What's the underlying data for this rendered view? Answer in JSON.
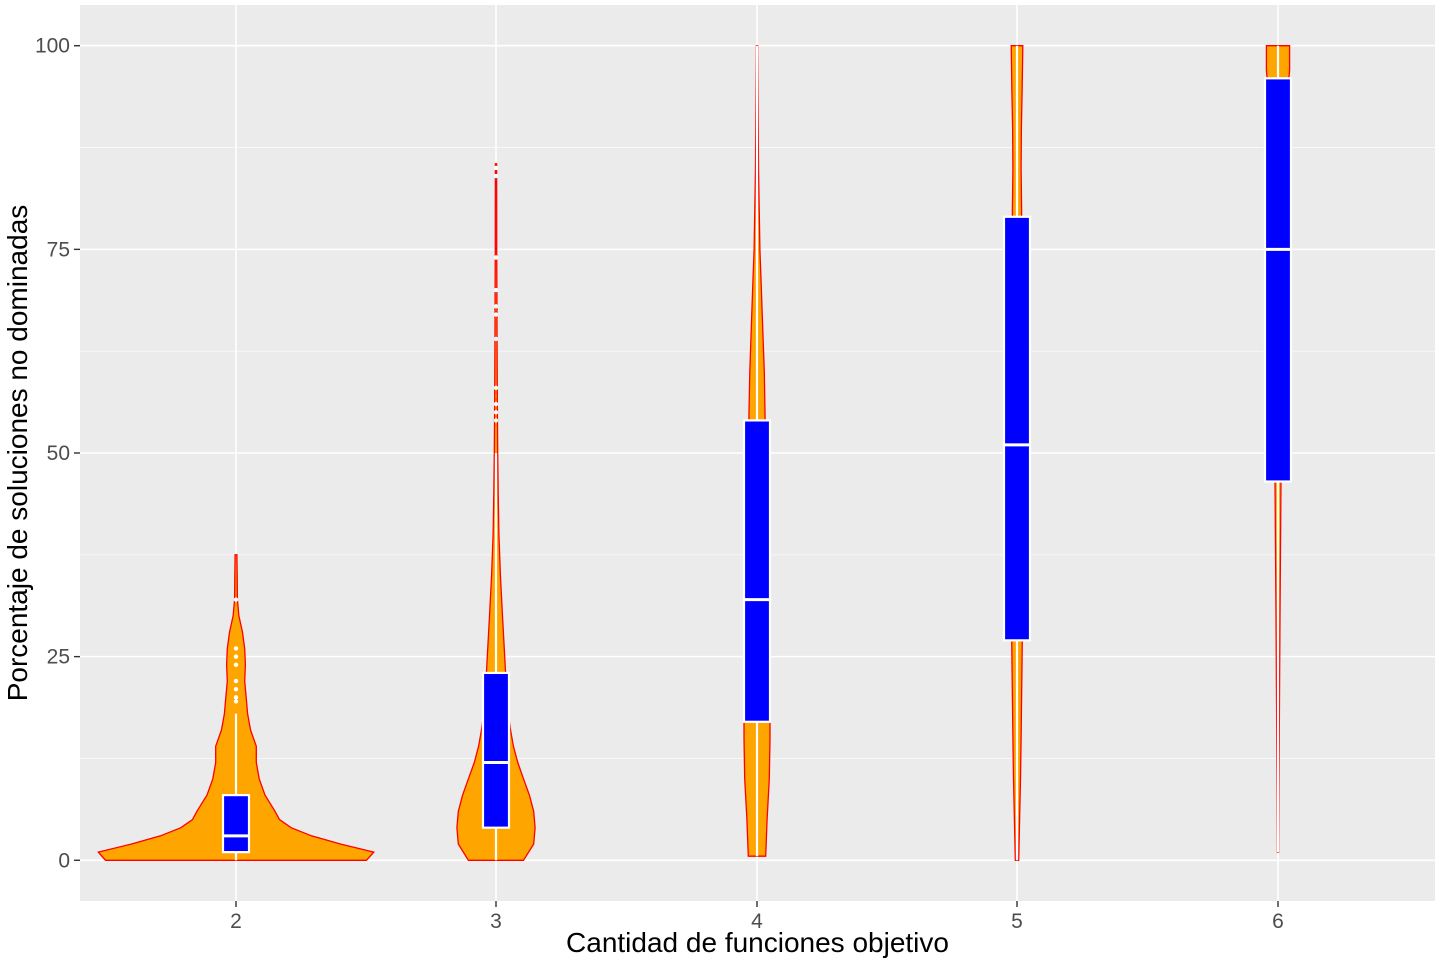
{
  "chart_data": {
    "type": "violin",
    "xlabel": "Cantidad de funciones objetivo",
    "ylabel": "Porcentaje de soluciones no dominadas",
    "categories": [
      "2",
      "3",
      "4",
      "5",
      "6"
    ],
    "ylim": [
      -5,
      105
    ],
    "y_ticks": [
      0,
      25,
      50,
      75,
      100
    ],
    "y_tick_labels": [
      "0",
      "25",
      "50",
      "75",
      "100"
    ],
    "grid": true,
    "colors": {
      "panel_bg": "#ebebeb",
      "grid_major": "#ffffff",
      "violin_fill": "#ffa500",
      "violin_outline": "#ff0000",
      "box_fill": "#0000ff",
      "box_line": "#ffffff"
    },
    "violins": [
      {
        "category": "2",
        "box": {
          "q1": 1,
          "median": 3,
          "q3": 8,
          "whisker_low": 0,
          "whisker_high": 18
        },
        "outliers": [
          19.5,
          20,
          21,
          22,
          24,
          25,
          26,
          32
        ],
        "profile": [
          [
            0,
            0.9
          ],
          [
            1,
            0.95
          ],
          [
            2,
            0.72
          ],
          [
            3,
            0.52
          ],
          [
            4,
            0.38
          ],
          [
            5,
            0.3
          ],
          [
            6,
            0.27
          ],
          [
            8,
            0.2
          ],
          [
            10,
            0.16
          ],
          [
            12,
            0.14
          ],
          [
            14,
            0.14
          ],
          [
            16,
            0.1
          ],
          [
            18,
            0.08
          ],
          [
            20,
            0.07
          ],
          [
            22,
            0.06
          ],
          [
            24,
            0.065
          ],
          [
            26,
            0.06
          ],
          [
            28,
            0.045
          ],
          [
            30,
            0.02
          ],
          [
            32,
            0.01
          ],
          [
            35,
            0.008
          ],
          [
            37.5,
            0.006
          ]
        ]
      },
      {
        "category": "3",
        "box": {
          "q1": 4,
          "median": 12,
          "q3": 23,
          "whisker_low": 0,
          "whisker_high": 50
        },
        "outliers": [
          54,
          55,
          56,
          58,
          64,
          67,
          68,
          70,
          74,
          84,
          85
        ],
        "profile": [
          [
            0,
            0.19
          ],
          [
            2,
            0.26
          ],
          [
            4,
            0.27
          ],
          [
            6,
            0.26
          ],
          [
            8,
            0.23
          ],
          [
            10,
            0.19
          ],
          [
            12,
            0.15
          ],
          [
            14,
            0.12
          ],
          [
            16,
            0.1
          ],
          [
            18,
            0.085
          ],
          [
            20,
            0.075
          ],
          [
            25,
            0.06
          ],
          [
            30,
            0.045
          ],
          [
            35,
            0.03
          ],
          [
            40,
            0.02
          ],
          [
            45,
            0.015
          ],
          [
            50,
            0.012
          ],
          [
            55,
            0.01
          ],
          [
            60,
            0.008
          ],
          [
            65,
            0.007
          ],
          [
            70,
            0.006
          ],
          [
            75,
            0.005
          ],
          [
            80,
            0.005
          ],
          [
            85.5,
            0.004
          ]
        ]
      },
      {
        "category": "4",
        "box": {
          "q1": 17,
          "median": 32,
          "q3": 54,
          "whisker_low": 0.5,
          "whisker_high": 100
        },
        "outliers": [],
        "profile": [
          [
            0.5,
            0.06
          ],
          [
            5,
            0.07
          ],
          [
            10,
            0.085
          ],
          [
            15,
            0.09
          ],
          [
            20,
            0.09
          ],
          [
            25,
            0.085
          ],
          [
            30,
            0.075
          ],
          [
            35,
            0.07
          ],
          [
            40,
            0.065
          ],
          [
            45,
            0.06
          ],
          [
            50,
            0.058
          ],
          [
            55,
            0.055
          ],
          [
            60,
            0.05
          ],
          [
            65,
            0.04
          ],
          [
            70,
            0.03
          ],
          [
            75,
            0.02
          ],
          [
            80,
            0.015
          ],
          [
            85,
            0.01
          ],
          [
            90,
            0.008
          ],
          [
            95,
            0.006
          ],
          [
            100,
            0.004
          ]
        ]
      },
      {
        "category": "5",
        "box": {
          "q1": 27,
          "median": 51,
          "q3": 79,
          "whisker_low": 0,
          "whisker_high": 100
        },
        "outliers": [],
        "profile": [
          [
            0,
            0.012
          ],
          [
            5,
            0.018
          ],
          [
            10,
            0.024
          ],
          [
            15,
            0.028
          ],
          [
            20,
            0.032
          ],
          [
            25,
            0.035
          ],
          [
            30,
            0.038
          ],
          [
            35,
            0.04
          ],
          [
            40,
            0.04
          ],
          [
            45,
            0.04
          ],
          [
            50,
            0.04
          ],
          [
            55,
            0.04
          ],
          [
            60,
            0.038
          ],
          [
            65,
            0.036
          ],
          [
            70,
            0.034
          ],
          [
            75,
            0.033
          ],
          [
            80,
            0.032
          ],
          [
            85,
            0.028
          ],
          [
            90,
            0.03
          ],
          [
            95,
            0.036
          ],
          [
            100,
            0.04
          ]
        ]
      },
      {
        "category": "6",
        "box": {
          "q1": 46.5,
          "median": 75,
          "q3": 96,
          "whisker_low": 1,
          "whisker_high": 100
        },
        "outliers": [],
        "profile": [
          [
            1,
            0.004
          ],
          [
            10,
            0.007
          ],
          [
            20,
            0.01
          ],
          [
            30,
            0.014
          ],
          [
            40,
            0.018
          ],
          [
            50,
            0.022
          ],
          [
            60,
            0.026
          ],
          [
            70,
            0.03
          ],
          [
            80,
            0.034
          ],
          [
            85,
            0.03
          ],
          [
            88,
            0.026
          ],
          [
            92,
            0.05
          ],
          [
            95,
            0.07
          ],
          [
            97,
            0.08
          ],
          [
            100,
            0.08
          ]
        ]
      }
    ]
  }
}
